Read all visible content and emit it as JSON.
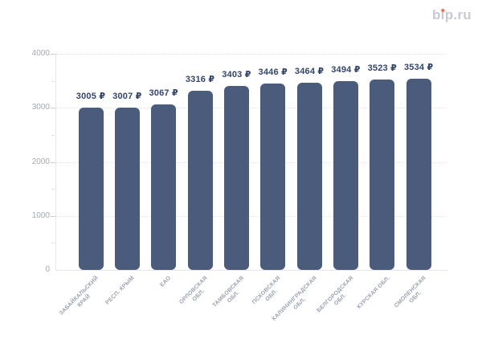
{
  "logo": {
    "text": "bip.ru",
    "parts": [
      "b",
      "ı",
      "p.ru"
    ],
    "text_color": "#c6cad6",
    "dot_color": "#e8765a"
  },
  "chart_data": {
    "type": "bar",
    "title": "",
    "xlabel": "",
    "ylabel": "",
    "categories": [
      "ЗАБАЙКАЛЬСКИЙ КРАЙ",
      "РЕСП. КРЫМ",
      "ЕАО",
      "ОРЛОВСКАЯ ОБЛ.",
      "ТАМБОВСКАЯ ОБЛ.",
      "ПСКОВСКАЯ ОБЛ.",
      "КАЛИНИНГРАДСКАЯ ОБЛ.",
      "БЕЛГОРОДСКАЯ ОБЛ.",
      "КУРСКАЯ ОБЛ.",
      "СМОЛЕНСКАЯ ОБЛ."
    ],
    "category_lines": [
      [
        "ЗАБАЙКАЛЬСКИЙ",
        "КРАЙ"
      ],
      [
        "РЕСП. КРЫМ"
      ],
      [
        "ЕАО"
      ],
      [
        "ОРЛОВСКАЯ",
        "ОБЛ."
      ],
      [
        "ТАМБОВСКАЯ",
        "ОБЛ."
      ],
      [
        "ПСКОВСКАЯ",
        "ОБЛ."
      ],
      [
        "КАЛИНИНГРАДСКАЯ",
        "ОБЛ."
      ],
      [
        "БЕЛГОРОДСКАЯ",
        "ОБЛ."
      ],
      [
        "КУРСКАЯ ОБЛ."
      ],
      [
        "СМОЛЕНСКАЯ",
        "ОБЛ."
      ]
    ],
    "values": [
      3005,
      3007,
      3067,
      3316,
      3403,
      3446,
      3464,
      3494,
      3523,
      3534
    ],
    "value_labels": [
      "3005 ₽",
      "3007 ₽",
      "3067 ₽",
      "3316 ₽",
      "3403 ₽",
      "3446 ₽",
      "3464 ₽",
      "3494 ₽",
      "3523 ₽",
      "3534 ₽"
    ],
    "currency": "₽",
    "ylim": [
      0,
      4000
    ],
    "yticks_major": [
      0,
      1000,
      2000,
      3000,
      4000
    ],
    "yticks_minor": [
      500,
      1500,
      2500,
      3500
    ],
    "grid": "horizontal-dotted",
    "legend": "none",
    "colors": {
      "bar": "#4a5b7c",
      "value_label": "#344569",
      "y_label": "#a3a8b2",
      "x_label": "#9aa2b0",
      "gridline": "#e0e4ea",
      "axis_line": "#e3e6ec",
      "tick_major": "#c7ccd6",
      "tick_minor": "#dde1e8"
    }
  }
}
